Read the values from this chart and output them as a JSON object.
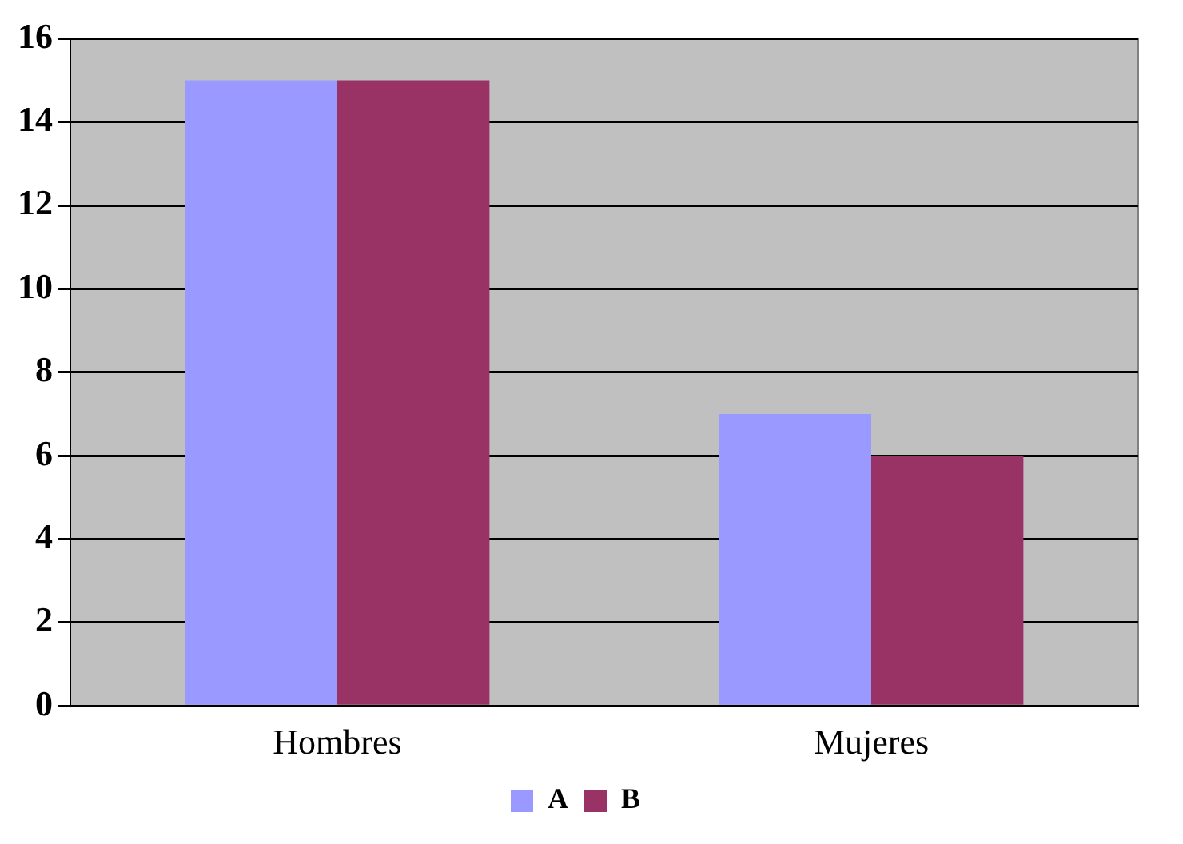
{
  "chart_data": {
    "type": "bar",
    "categories": [
      "Hombres",
      "Mujeres"
    ],
    "series": [
      {
        "name": "A",
        "color": "#9999ff",
        "values": [
          15,
          7
        ]
      },
      {
        "name": "B",
        "color": "#993366",
        "values": [
          15,
          6
        ]
      }
    ],
    "ylim": [
      0,
      16
    ],
    "yticks": [
      0,
      2,
      4,
      6,
      8,
      10,
      12,
      14,
      16
    ],
    "grid": "y",
    "legend": "bottom"
  }
}
